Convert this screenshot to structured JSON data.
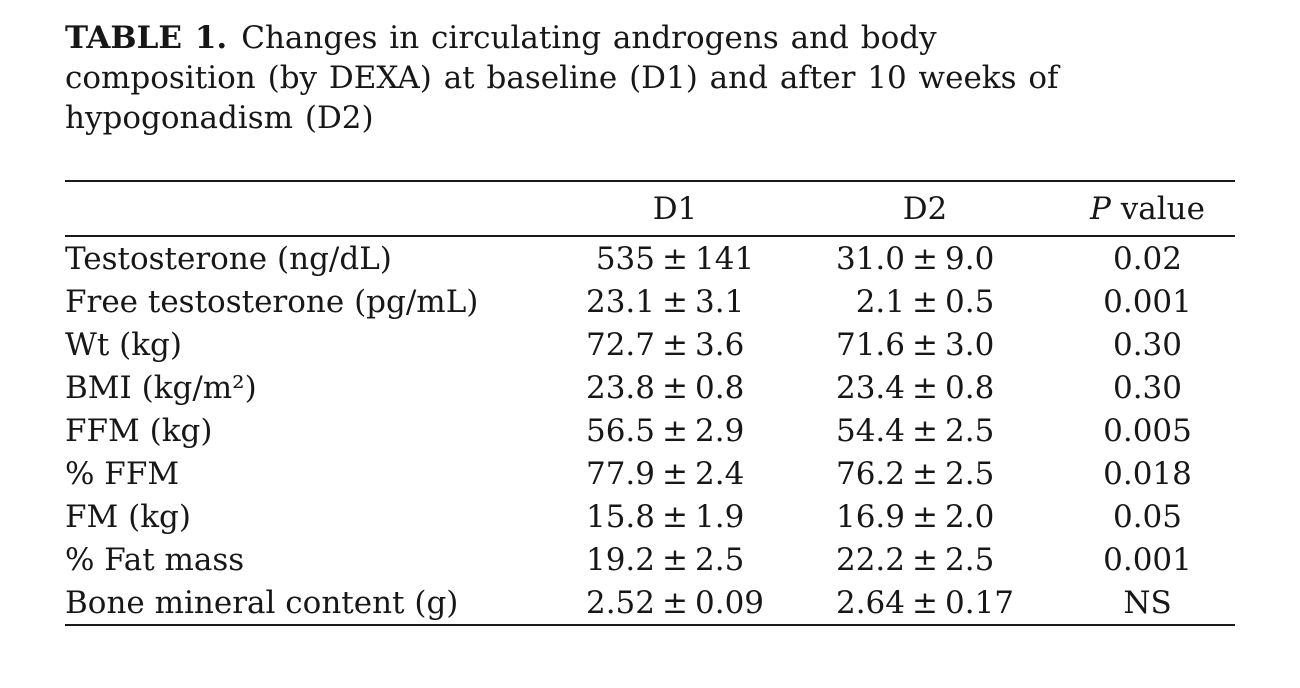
{
  "caption": {
    "label": "TABLE 1.",
    "lines": [
      "Changes in circulating androgens and body",
      "composition (by DEXA) at baseline (D1) and after 10 weeks of",
      "hypogonadism (D2)"
    ]
  },
  "table": {
    "columns": {
      "parameter": "",
      "d1": "D1",
      "d2": "D2",
      "p_value_italic": "P",
      "p_value_rest": "value"
    },
    "plus_minus": "±",
    "rows": [
      {
        "label": "Testosterone (ng/dL)",
        "d1_mean": "535",
        "d1_sd": "141",
        "d2_mean": "31.0",
        "d2_sd": "9.0",
        "p": "0.02"
      },
      {
        "label": "Free testosterone (pg/mL)",
        "d1_mean": "23.1",
        "d1_sd": "3.1",
        "d2_mean": "2.1",
        "d2_sd": "0.5",
        "p": "0.001"
      },
      {
        "label": "Wt (kg)",
        "d1_mean": "72.7",
        "d1_sd": "3.6",
        "d2_mean": "71.6",
        "d2_sd": "3.0",
        "p": "0.30"
      },
      {
        "label": "BMI (kg/m²)",
        "d1_mean": "23.8",
        "d1_sd": "0.8",
        "d2_mean": "23.4",
        "d2_sd": "0.8",
        "p": "0.30"
      },
      {
        "label": "FFM (kg)",
        "d1_mean": "56.5",
        "d1_sd": "2.9",
        "d2_mean": "54.4",
        "d2_sd": "2.5",
        "p": "0.005"
      },
      {
        "label": "% FFM",
        "d1_mean": "77.9",
        "d1_sd": "2.4",
        "d2_mean": "76.2",
        "d2_sd": "2.5",
        "p": "0.018"
      },
      {
        "label": "FM (kg)",
        "d1_mean": "15.8",
        "d1_sd": "1.9",
        "d2_mean": "16.9",
        "d2_sd": "2.0",
        "p": "0.05"
      },
      {
        "label": "% Fat mass",
        "d1_mean": "19.2",
        "d1_sd": "2.5",
        "d2_mean": "22.2",
        "d2_sd": "2.5",
        "p": "0.001"
      },
      {
        "label": "Bone mineral content (g)",
        "d1_mean": "2.52",
        "d1_sd": "0.09",
        "d2_mean": "2.64",
        "d2_sd": "0.17",
        "p": "NS"
      }
    ]
  },
  "chart_data": {
    "type": "table",
    "title": "TABLE 1. Changes in circulating androgens and body composition (by DEXA) at baseline (D1) and after 10 weeks of hypogonadism (D2)",
    "columns": [
      "",
      "D1",
      "D2",
      "P value"
    ],
    "rows": [
      [
        "Testosterone (ng/dL)",
        "535 ± 141",
        "31.0 ± 9.0",
        "0.02"
      ],
      [
        "Free testosterone (pg/mL)",
        "23.1 ± 3.1",
        "2.1 ± 0.5",
        "0.001"
      ],
      [
        "Wt (kg)",
        "72.7 ± 3.6",
        "71.6 ± 3.0",
        "0.30"
      ],
      [
        "BMI (kg/m²)",
        "23.8 ± 0.8",
        "23.4 ± 0.8",
        "0.30"
      ],
      [
        "FFM (kg)",
        "56.5 ± 2.9",
        "54.4 ± 2.5",
        "0.005"
      ],
      [
        "% FFM",
        "77.9 ± 2.4",
        "76.2 ± 2.5",
        "0.018"
      ],
      [
        "FM (kg)",
        "15.8 ± 1.9",
        "16.9 ± 2.0",
        "0.05"
      ],
      [
        "% Fat mass",
        "19.2 ± 2.5",
        "22.2 ± 2.5",
        "0.001"
      ],
      [
        "Bone mineral content (g)",
        "2.52 ± 0.09",
        "2.64 ± 0.17",
        "NS"
      ]
    ]
  },
  "colors": {
    "background": "#ffffff",
    "text": "#171717",
    "rule": "#1a1a1a"
  }
}
